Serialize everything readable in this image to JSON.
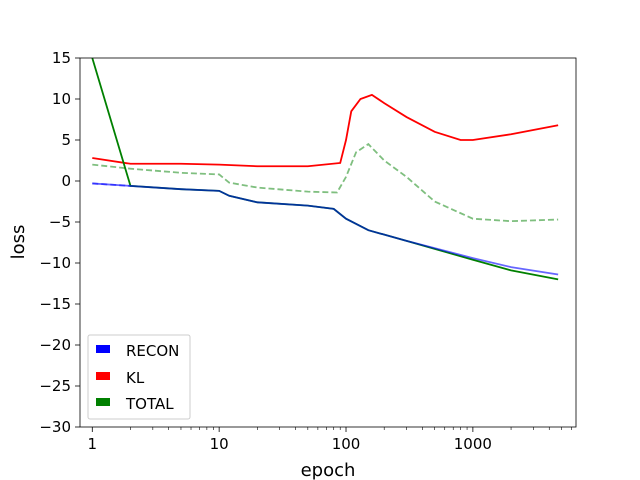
{
  "chart_data": {
    "type": "line",
    "title": "",
    "xlabel": "epoch",
    "ylabel": "loss",
    "xscale": "log",
    "xlim": [
      0.8,
      6500
    ],
    "ylim": [
      -30,
      15
    ],
    "xticks": [
      1,
      10,
      100,
      1000
    ],
    "xtick_labels": [
      "1",
      "10",
      "100",
      "1000"
    ],
    "yticks": [
      15,
      10,
      5,
      0,
      -5,
      -10,
      -15,
      -20,
      -25,
      -30
    ],
    "ytick_labels": [
      "15",
      "10",
      "5",
      "0",
      "−5",
      "−10",
      "−15",
      "−20",
      "−25",
      "−30"
    ],
    "grid": false,
    "legend_position": "lower-left",
    "colors": {
      "RECON": "#0000ff",
      "KL": "#ff0000",
      "TOTAL": "#008000"
    },
    "series": [
      {
        "name": "RECON",
        "color": "#0000ff",
        "x": [
          1,
          2,
          5,
          10,
          12,
          20,
          50,
          80,
          100,
          150,
          300,
          1000,
          2000,
          4700
        ],
        "y": [
          -0.3,
          -0.6,
          -1.0,
          -1.2,
          -1.8,
          -2.6,
          -3.0,
          -3.4,
          -4.6,
          -6.0,
          -7.3,
          -9.4,
          -10.5,
          -11.4
        ]
      },
      {
        "name": "KL",
        "color": "#ff0000",
        "x": [
          1,
          2,
          5,
          10,
          20,
          50,
          90,
          100,
          110,
          130,
          160,
          200,
          300,
          500,
          800,
          1000,
          2000,
          4700
        ],
        "y": [
          2.8,
          2.1,
          2.1,
          2.0,
          1.8,
          1.8,
          2.2,
          5.0,
          8.5,
          10.0,
          10.5,
          9.5,
          7.8,
          6.0,
          5.0,
          5.0,
          5.7,
          6.8
        ]
      },
      {
        "name": "TOTAL",
        "color": "#008000",
        "x": [
          1,
          2,
          5,
          10,
          12,
          20,
          50,
          80,
          100,
          150,
          300,
          1000,
          2000,
          4700
        ],
        "y": [
          15,
          -0.6,
          -1.0,
          -1.2,
          -1.8,
          -2.6,
          -3.0,
          -3.4,
          -4.6,
          -6.0,
          -7.3,
          -9.6,
          -10.9,
          -12.0
        ]
      }
    ],
    "extra_lines": [
      {
        "of_series": "RECON",
        "style": "dashed",
        "x": [
          1,
          2
        ],
        "y": [
          -0.3,
          -0.6
        ]
      },
      {
        "of_series": "TOTAL",
        "style": "dashed",
        "x": [
          1,
          2,
          5,
          10,
          12,
          20,
          50,
          85,
          100,
          120,
          150,
          200,
          300,
          500,
          1000,
          2000,
          4700
        ],
        "y": [
          2.0,
          1.5,
          1.0,
          0.8,
          -0.2,
          -0.8,
          -1.3,
          -1.4,
          0.5,
          3.5,
          4.5,
          2.5,
          0.5,
          -2.5,
          -4.6,
          -4.9,
          -4.7
        ]
      }
    ]
  }
}
